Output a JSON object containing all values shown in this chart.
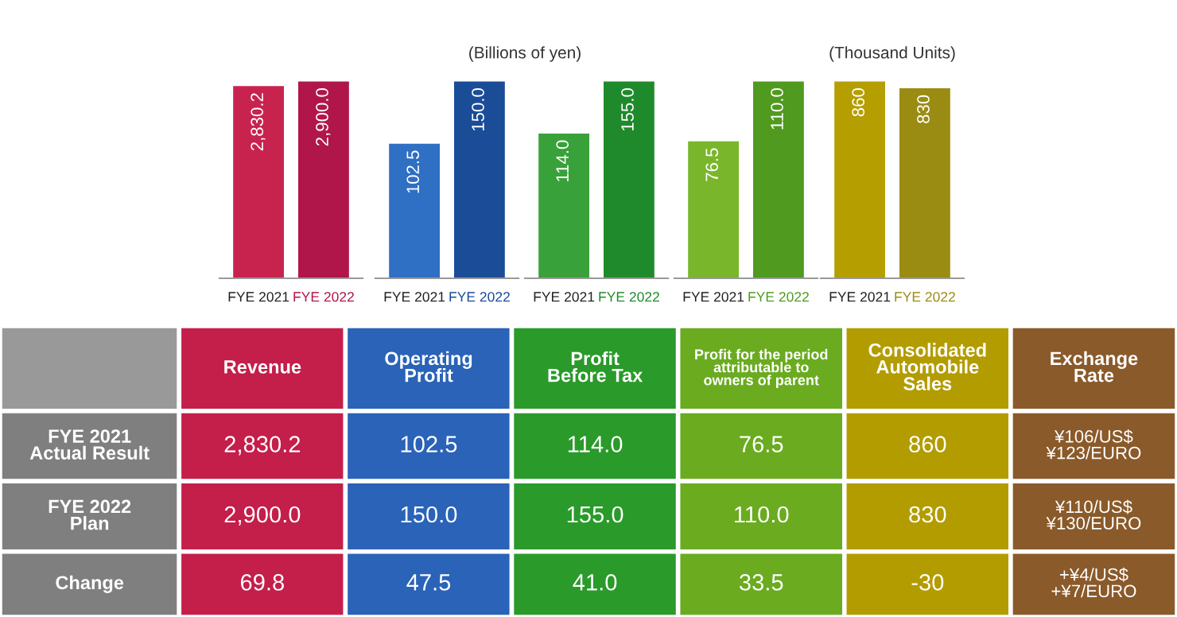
{
  "chart_data": [
    {
      "type": "bar",
      "categories": [
        "FYE 2021",
        "FYE 2022"
      ],
      "values": [
        2830.2,
        2900.0
      ],
      "value_labels": [
        "2,830.2",
        "2,900.0"
      ],
      "colors": [
        "#c8234f",
        "#b0164a"
      ],
      "tick_labels": "x"
    },
    {
      "type": "bar",
      "categories": [
        "FYE 2021",
        "FYE 2022"
      ],
      "values": [
        102.5,
        150.0
      ],
      "value_labels": [
        "102.5",
        "150.0"
      ],
      "colors": [
        "#2f6fc4",
        "#1b4c98"
      ],
      "tick_labels": "x"
    },
    {
      "type": "bar",
      "title": "(Billions of yen)",
      "categories": [
        "FYE 2021",
        "FYE 2022"
      ],
      "values": [
        114.0,
        155.0
      ],
      "value_labels": [
        "114.0",
        "155.0"
      ],
      "colors": [
        "#39a13a",
        "#1f8a2b"
      ],
      "tick_labels": "x"
    },
    {
      "type": "bar",
      "categories": [
        "FYE 2021",
        "FYE 2022"
      ],
      "values": [
        76.5,
        110.0
      ],
      "value_labels": [
        "76.5",
        "110.0"
      ],
      "colors": [
        "#7ab62b",
        "#4f9a1f"
      ],
      "tick_labels": "x"
    },
    {
      "type": "bar",
      "title": "(Thousand Units)",
      "categories": [
        "FYE 2021",
        "FYE 2022"
      ],
      "values": [
        860,
        830
      ],
      "value_labels": [
        "860",
        "830"
      ],
      "colors": [
        "#b59e00",
        "#9a8c12"
      ],
      "tick_labels": "x"
    },
    {
      "type": "other",
      "categories": [
        "Revenue",
        "Operating\nProfit",
        "Profit\nBefore Tax",
        "Profit for the period\nattributable to\nowners of parent",
        "Consolidated\nAutomobile\nSales",
        "Exchange\nRate"
      ],
      "y_categories": [
        "FYE 2021\nActual Result",
        "FYE 2022\nPlan",
        "Change"
      ],
      "cell_labels": [
        [
          "2,830.2",
          "102.5",
          "114.0",
          "76.5",
          "860",
          "¥106/US$\n¥123/EURO"
        ],
        [
          "2,900.0",
          "150.0",
          "155.0",
          "110.0",
          "830",
          "¥110/US$\n¥130/EURO"
        ],
        [
          "69.8",
          "47.5",
          "41.0",
          "33.5",
          "-30",
          "+¥4/US$\n+¥7/EURO"
        ]
      ],
      "colors": [
        "#c41e4a",
        "#2a63b8",
        "#2a9a2a",
        "#6aab20",
        "#b39c00",
        "#8a5a2a"
      ]
    }
  ]
}
